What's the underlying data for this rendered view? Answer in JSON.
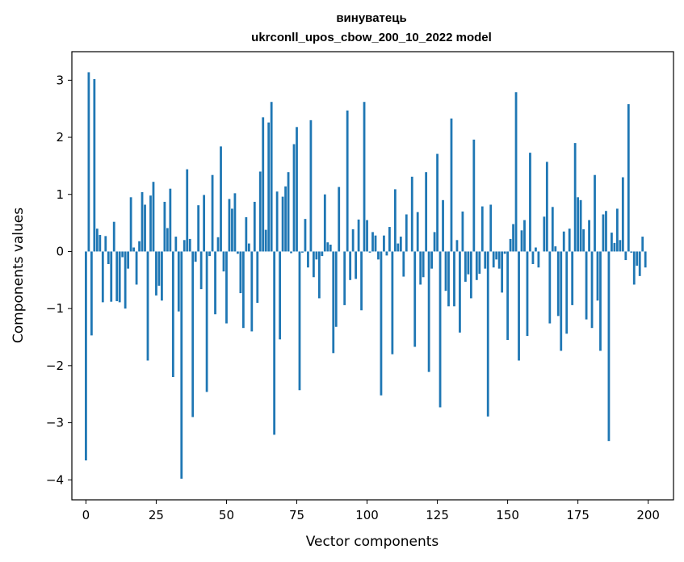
{
  "chart_data": {
    "type": "bar",
    "title": "винуватець",
    "subtitle": "ukrconll_upos_cbow_200_10_2022 model",
    "xlabel": "Vector components",
    "ylabel": "Components values",
    "xlim": [
      -5,
      209
    ],
    "ylim": [
      -4.35,
      3.5
    ],
    "xticks": [
      0,
      25,
      50,
      75,
      100,
      125,
      150,
      175,
      200
    ],
    "yticks": [
      -4,
      -3,
      -2,
      -1,
      0,
      1,
      2,
      3
    ],
    "bar_color": "#1f77b4",
    "grid": false,
    "legend": "none",
    "series": [
      {
        "values": [
          -3.66,
          3.14,
          -1.47,
          3.02,
          0.4,
          0.29,
          -0.89,
          0.27,
          -0.22,
          -0.88,
          0.52,
          -0.87,
          -0.89,
          -0.1,
          -1.0,
          -0.3,
          0.95,
          0.07,
          -0.58,
          0.18,
          1.04,
          0.82,
          -1.91,
          0.98,
          1.22,
          -0.77,
          -0.6,
          -0.86,
          0.87,
          0.41,
          1.1,
          -2.2,
          0.26,
          -1.05,
          -3.98,
          0.2,
          1.44,
          0.22,
          -2.9,
          -0.18,
          0.81,
          -0.66,
          0.99,
          -2.46,
          -0.08,
          1.34,
          -1.1,
          0.25,
          1.84,
          -0.35,
          -1.26,
          0.92,
          0.75,
          1.02,
          -0.04,
          -0.73,
          -1.34,
          0.6,
          0.14,
          -1.4,
          0.87,
          -0.9,
          1.4,
          2.35,
          0.38,
          2.26,
          2.62,
          -3.21,
          1.05,
          -1.54,
          0.96,
          1.14,
          1.39,
          -0.03,
          1.88,
          2.18,
          -2.43,
          -0.02,
          0.57,
          -0.28,
          2.3,
          -0.45,
          -0.14,
          -0.82,
          -0.08,
          1.0,
          0.16,
          0.12,
          -1.78,
          -1.32,
          1.13,
          0.0,
          -0.94,
          2.47,
          -0.5,
          0.39,
          -0.48,
          0.56,
          -1.03,
          2.62,
          0.55,
          -0.02,
          0.34,
          0.28,
          -0.14,
          -2.52,
          0.28,
          -0.07,
          0.43,
          -1.8,
          1.09,
          0.14,
          0.26,
          -0.44,
          0.65,
          0.0,
          1.31,
          -1.67,
          0.69,
          -0.58,
          -0.45,
          1.39,
          -2.11,
          -0.3,
          0.34,
          1.71,
          -2.73,
          0.9,
          -0.69,
          -0.96,
          2.33,
          -0.96,
          0.2,
          -1.42,
          0.7,
          -0.53,
          -0.4,
          -0.82,
          1.96,
          -0.5,
          -0.39,
          0.79,
          -0.3,
          -2.89,
          0.82,
          -0.28,
          -0.14,
          -0.3,
          -0.72,
          -0.04,
          -1.55,
          0.22,
          0.48,
          2.79,
          -1.91,
          0.37,
          0.55,
          -1.48,
          1.73,
          -0.22,
          0.07,
          -0.28,
          0.0,
          0.61,
          1.57,
          -1.26,
          0.78,
          0.09,
          -1.13,
          -1.74,
          0.35,
          -1.44,
          0.4,
          -0.94,
          1.9,
          0.95,
          0.9,
          0.39,
          -1.19,
          0.55,
          -1.34,
          1.34,
          -0.86,
          -1.74,
          0.65,
          0.71,
          -3.32,
          0.33,
          0.15,
          0.75,
          0.2,
          1.3,
          -0.15,
          2.58,
          -0.02,
          -0.58,
          -0.25,
          -0.43,
          0.26,
          -0.28
        ]
      }
    ]
  }
}
